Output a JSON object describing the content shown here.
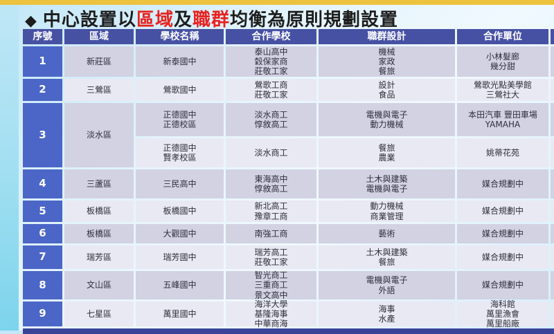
{
  "colors": {
    "accent_bar": "#edc23f",
    "side_strip": "#7cd4ec",
    "header_bg": "#4751a3",
    "serial_bg": "#4b66c7",
    "row_dark": "#d2d2e3",
    "row_light": "#e9e9f3",
    "title_red": "#e8221e",
    "bottom_peek": "#3a4397"
  },
  "title": {
    "bullet": "◆",
    "segments": [
      {
        "text": "中心設置以",
        "red": false
      },
      {
        "text": "區域",
        "red": true
      },
      {
        "text": "及",
        "red": false
      },
      {
        "text": "職群",
        "red": true
      },
      {
        "text": "均衡為原則規劃設置",
        "red": false
      }
    ]
  },
  "table": {
    "headers": [
      "序號",
      "區域",
      "學校名稱",
      "合作學校",
      "職群設計",
      "合作單位"
    ],
    "rows": [
      {
        "no": "1",
        "district": "新莊區",
        "school": "新泰國中",
        "partners": "泰山高中\n穀保家商\n莊敬工家",
        "clusters": "機械\n家政\n餐旅",
        "units": "小林髮廊\n幾分甜"
      },
      {
        "no": "2",
        "district": "三鶯區",
        "school": "鶯歌國中",
        "partners": "鶯歌工商\n莊敬工家",
        "clusters": "設計\n食品",
        "units": "鶯歌光點美學館\n三鶯社大"
      },
      {
        "no": "3",
        "district": "淡水區",
        "sub": [
          {
            "school": "正德國中\n正德校區",
            "partners": "淡水商工\n惇敘高工",
            "clusters": "電機與電子\n動力機械",
            "units": "本田汽車 豐田車場\nYAMAHA"
          },
          {
            "school": "正德國中\n賢孝校區",
            "partners": "淡水商工",
            "clusters": "餐旅\n農業",
            "units": "姚蒂花苑"
          }
        ]
      },
      {
        "no": "4",
        "district": "三蘆區",
        "school": "三民高中",
        "partners": "東海高中\n惇敘高工",
        "clusters": "土木與建築\n電機與電子",
        "units": "媒合規劃中"
      },
      {
        "no": "5",
        "district": "板橋區",
        "school": "板橋國中",
        "partners": "新北高工\n豫章工商",
        "clusters": "動力機械\n商業管理",
        "units": "媒合規劃中"
      },
      {
        "no": "6",
        "district": "板橋區",
        "school": "大觀國中",
        "partners": "南強工商",
        "clusters": "藝術",
        "units": "媒合規劃中"
      },
      {
        "no": "7",
        "district": "瑞芳區",
        "school": "瑞芳國中",
        "partners": "瑞芳高工\n莊敬工家",
        "clusters": "土木與建築\n餐旅",
        "units": "媒合規劃中"
      },
      {
        "no": "8",
        "district": "文山區",
        "school": "五峰國中",
        "partners": "智光商工\n三重商工\n景文高中",
        "clusters": "電機與電子\n外語",
        "units": "媒合規劃中"
      },
      {
        "no": "9",
        "district": "七星區",
        "school": "萬里國中",
        "partners": "海洋大學\n基隆海事\n中華商海",
        "clusters": "海事\n水產",
        "units": "海科館\n萬里漁會\n萬里船廠"
      }
    ]
  }
}
